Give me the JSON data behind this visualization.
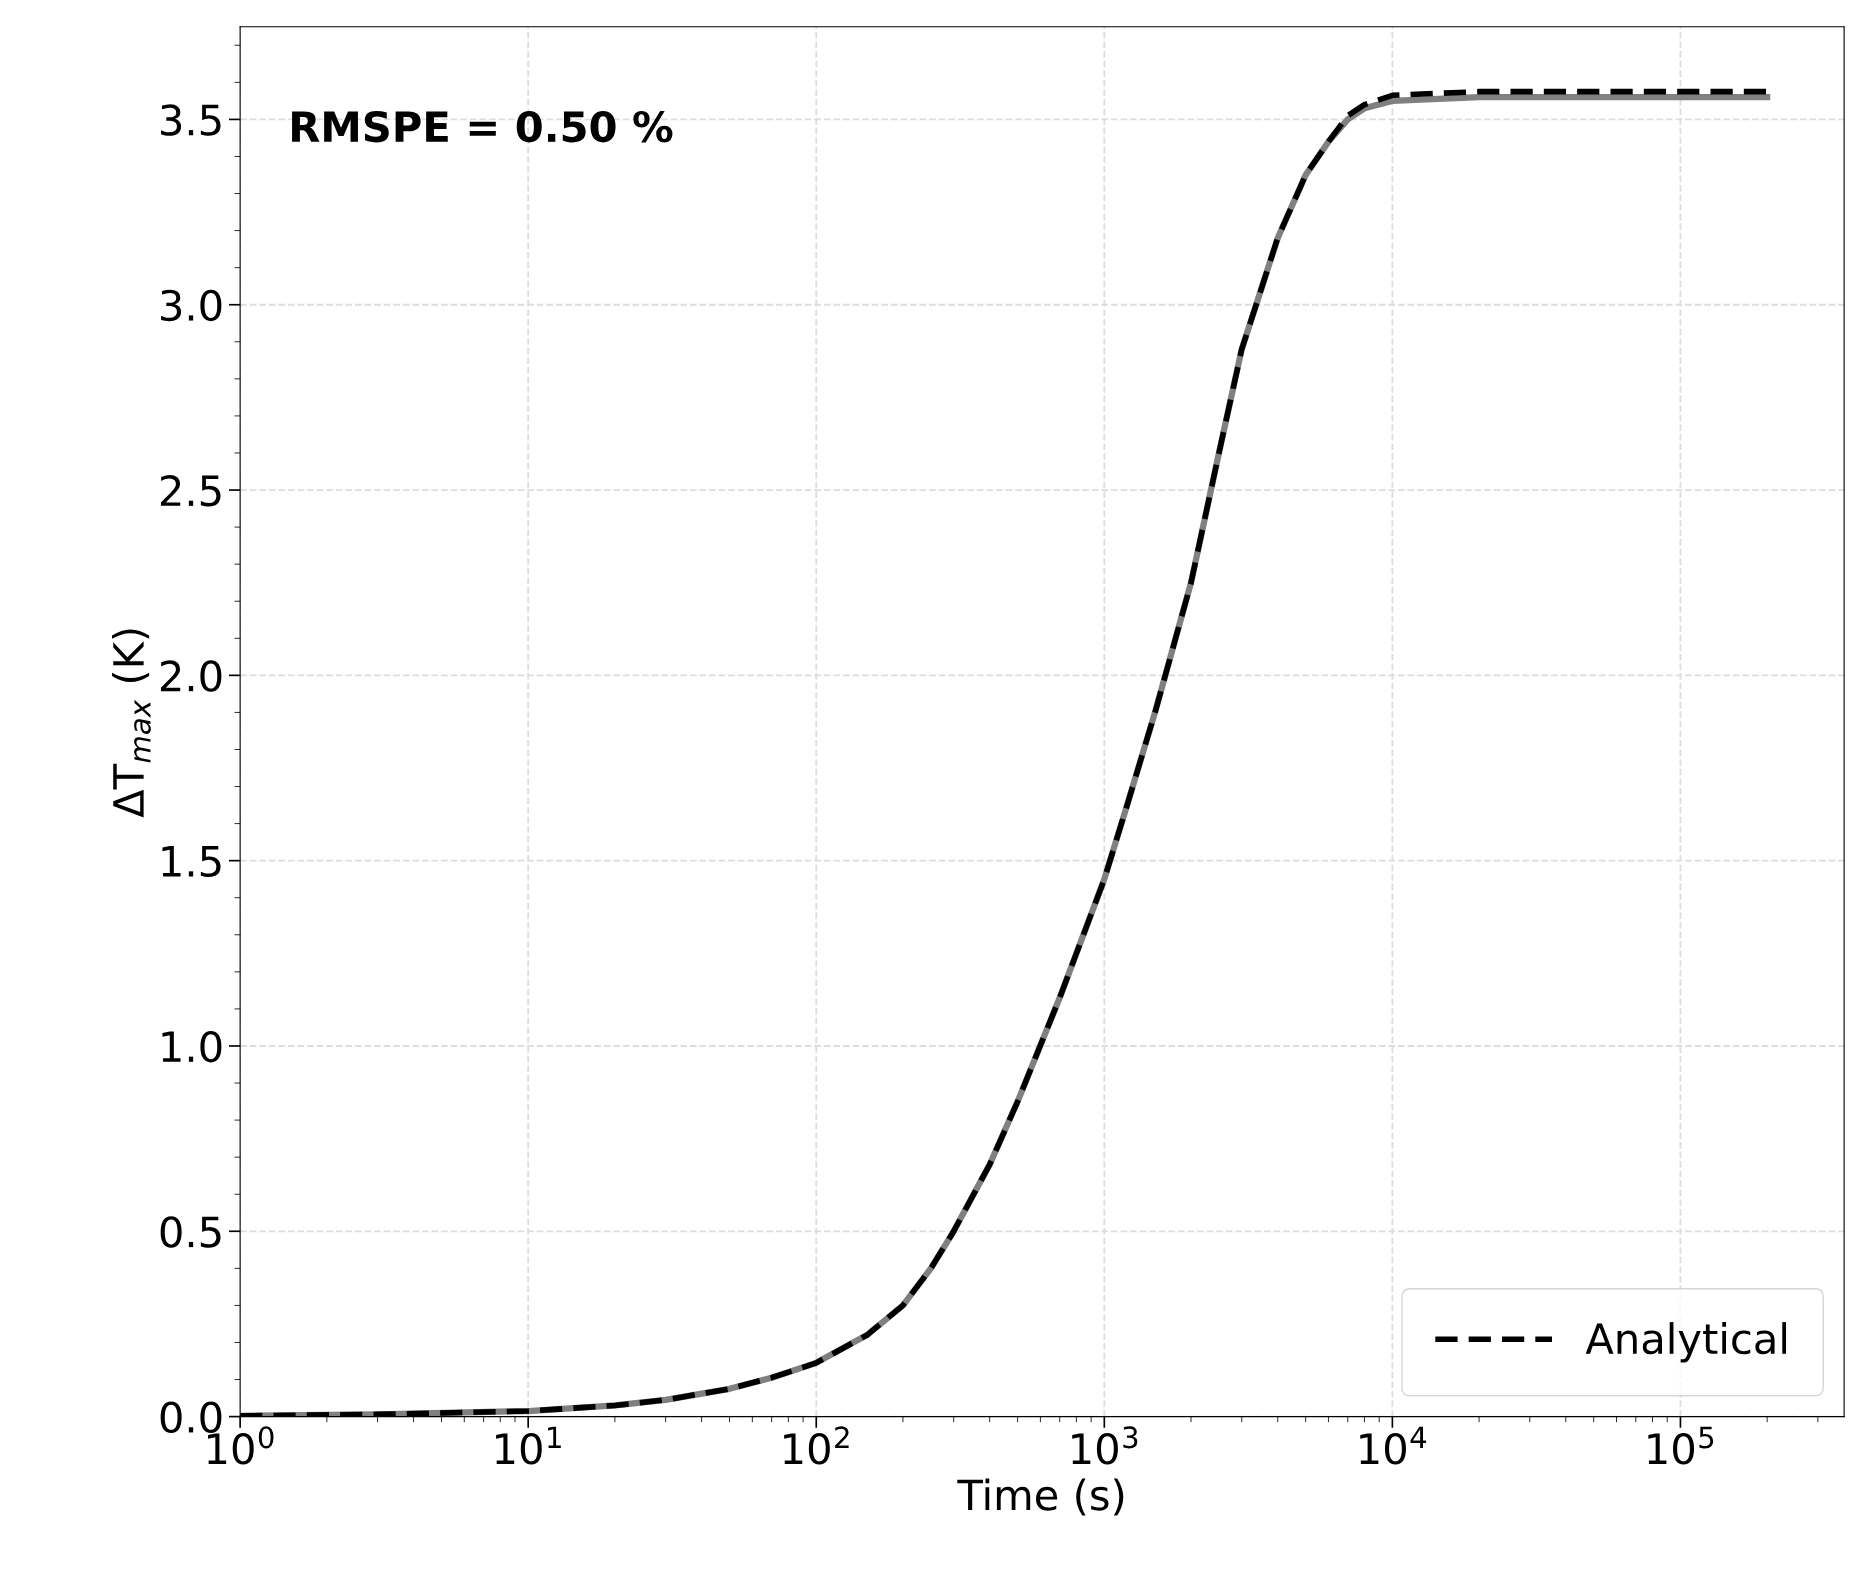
{
  "chart_data": {
    "type": "line",
    "xlabel": "Time (s)",
    "ylabel": "ΔT$_{max}$ (K)",
    "log": "x",
    "xlim": [
      1,
      370000
    ],
    "ylim": [
      0,
      3.75
    ],
    "xticks": [
      {
        "value": 1,
        "label": "10$^{0}$"
      },
      {
        "value": 10,
        "label": "10$^{1}$"
      },
      {
        "value": 100,
        "label": "10$^{2}$"
      },
      {
        "value": 1000,
        "label": "10$^{3}$"
      },
      {
        "value": 10000,
        "label": "10$^{4}$"
      },
      {
        "value": 100000,
        "label": "10$^{5}$"
      }
    ],
    "yticks": [
      {
        "value": 0,
        "label": "0.0"
      },
      {
        "value": 0.5,
        "label": "0.5"
      },
      {
        "value": 1.0,
        "label": "1.0"
      },
      {
        "value": 1.5,
        "label": "1.5"
      },
      {
        "value": 2.0,
        "label": "2.0"
      },
      {
        "value": 2.5,
        "label": "2.5"
      },
      {
        "value": 3.0,
        "label": "3.0"
      },
      {
        "value": 3.5,
        "label": "3.5"
      }
    ],
    "grid": true,
    "legend": "bottom right",
    "annotations": [
      "RMSPE = 0.50 %"
    ],
    "series": [
      {
        "color": "#808080",
        "line_style": "solid",
        "x": [
          1,
          3,
          10,
          20,
          30,
          50,
          70,
          100,
          150,
          200,
          250,
          300,
          400,
          500,
          700,
          1000,
          1200,
          1500,
          2000,
          2500,
          3000,
          4000,
          5000,
          6000,
          7000,
          8000,
          10000,
          20000,
          50000,
          100000,
          200000
        ],
        "values": [
          0.002,
          0.006,
          0.015,
          0.03,
          0.045,
          0.075,
          0.105,
          0.145,
          0.22,
          0.3,
          0.4,
          0.5,
          0.68,
          0.85,
          1.13,
          1.45,
          1.65,
          1.9,
          2.25,
          2.6,
          2.88,
          3.18,
          3.35,
          3.44,
          3.5,
          3.53,
          3.55,
          3.56,
          3.56,
          3.56,
          3.56
        ]
      },
      {
        "name": "Analytical",
        "color": "#000000",
        "line_style": "dashed",
        "x": [
          1,
          3,
          10,
          20,
          30,
          50,
          70,
          100,
          150,
          200,
          250,
          300,
          400,
          500,
          700,
          1000,
          1200,
          1500,
          2000,
          2500,
          3000,
          4000,
          5000,
          6000,
          7000,
          8000,
          10000,
          20000,
          50000,
          100000,
          200000
        ],
        "values": [
          0.002,
          0.006,
          0.015,
          0.03,
          0.045,
          0.075,
          0.105,
          0.145,
          0.22,
          0.3,
          0.4,
          0.5,
          0.68,
          0.85,
          1.13,
          1.45,
          1.65,
          1.9,
          2.25,
          2.6,
          2.88,
          3.18,
          3.35,
          3.44,
          3.51,
          3.54,
          3.565,
          3.575,
          3.575,
          3.575,
          3.575
        ]
      }
    ]
  }
}
